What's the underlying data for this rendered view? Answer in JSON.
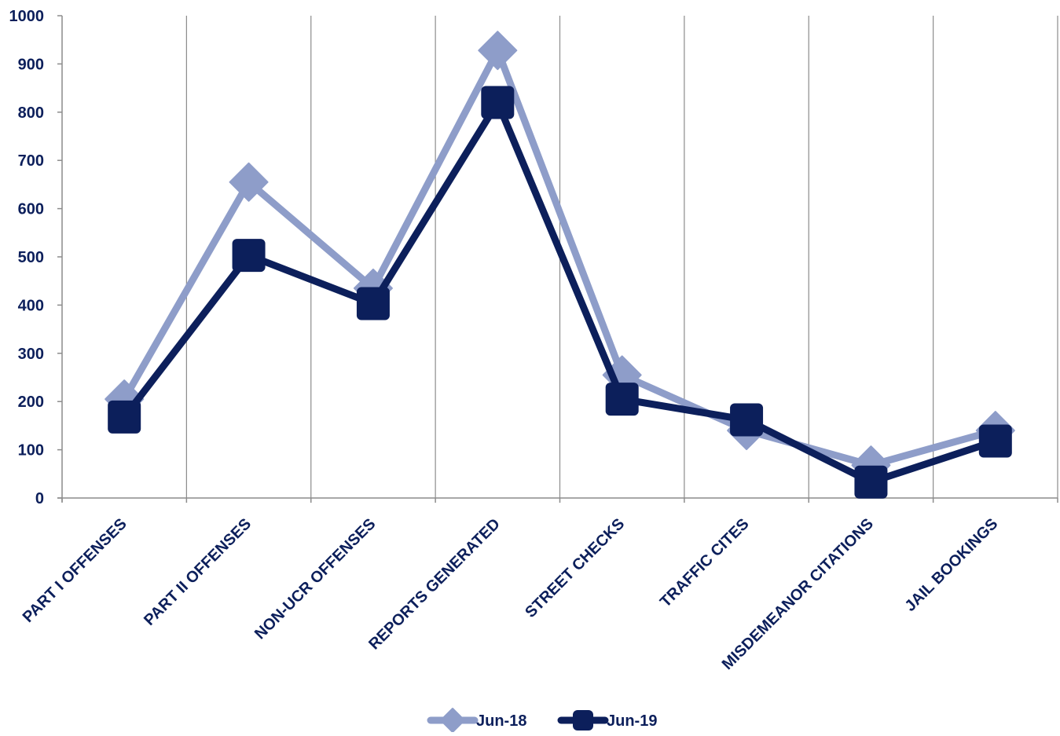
{
  "chart_data": {
    "type": "line",
    "title": "",
    "xlabel": "",
    "ylabel": "",
    "ylim": [
      0,
      1000
    ],
    "yticks": [
      0,
      100,
      200,
      300,
      400,
      500,
      600,
      700,
      800,
      900,
      1000
    ],
    "categories": [
      "PART I OFFENSES",
      "PART II OFFENSES",
      "NON-UCR OFFENSES",
      "REPORTS GENERATED",
      "STREET CHECKS",
      "TRAFFIC CITES",
      "MISDEMEANOR CITATIONS",
      "JAIL BOOKINGS"
    ],
    "series": [
      {
        "name": "Jun-18",
        "marker": "diamond",
        "color": "#8e9dc9",
        "values": [
          205,
          655,
          435,
          928,
          255,
          140,
          68,
          140
        ]
      },
      {
        "name": "Jun-19",
        "marker": "square",
        "color": "#0c1f5b",
        "values": [
          168,
          503,
          403,
          820,
          205,
          162,
          33,
          118
        ]
      }
    ],
    "grid": {
      "vertical": true,
      "horizontal": false
    },
    "legend_position": "bottom"
  },
  "colors": {
    "axis_text": "#0c1f5b",
    "grid": "#8c8c8c",
    "axis": "#8c8c8c"
  }
}
